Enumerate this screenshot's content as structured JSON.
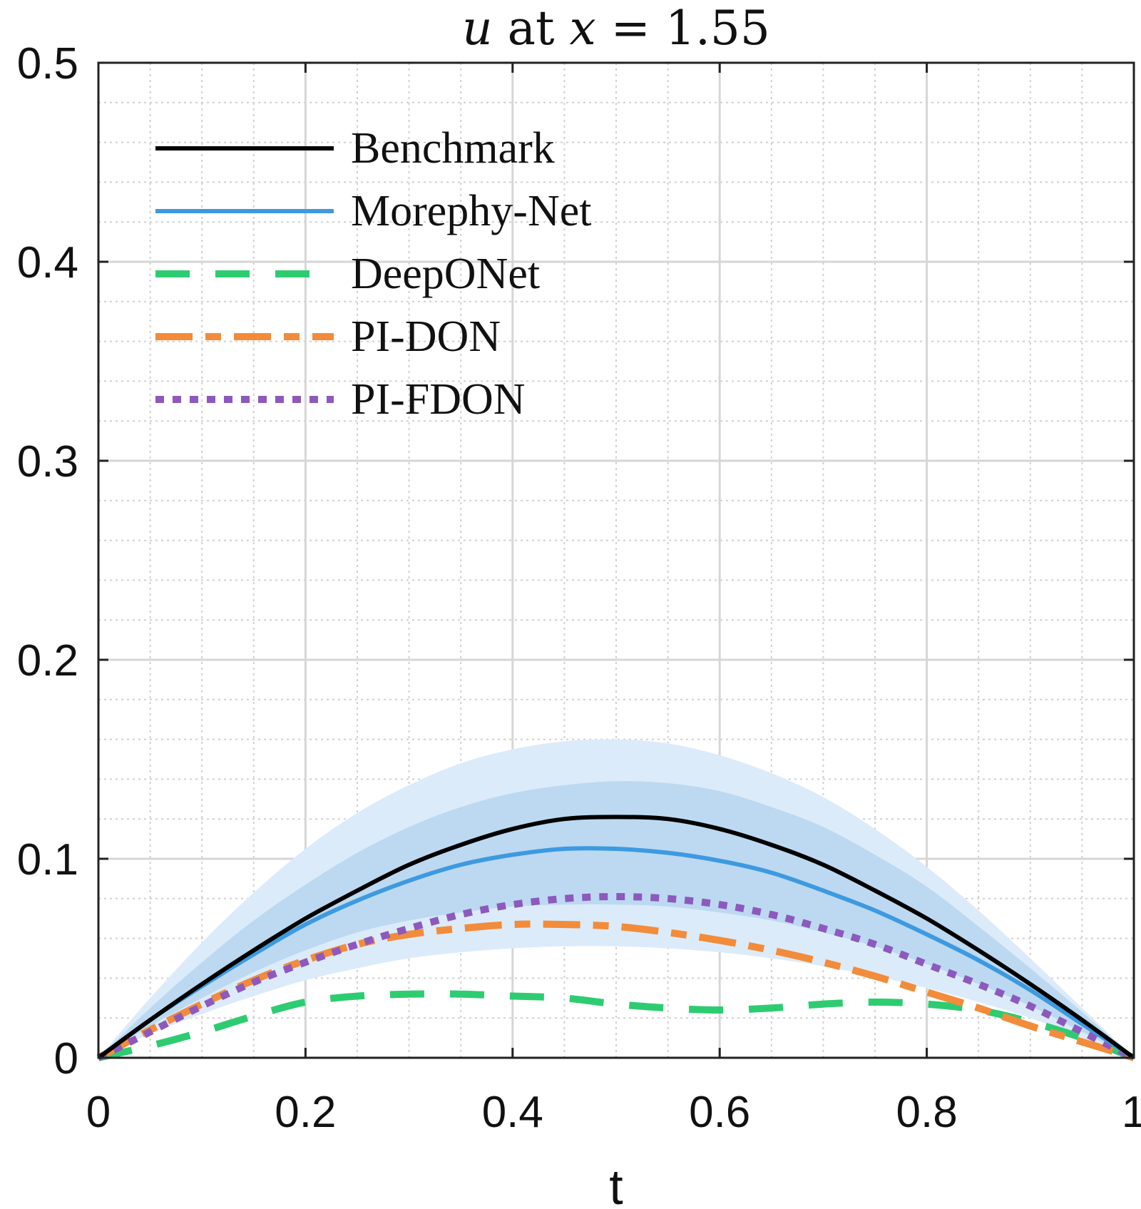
{
  "chart_data": {
    "type": "line",
    "title": "u at x = 1.55",
    "title_parts": {
      "var": "u",
      "mid": " at ",
      "xvar": "x",
      "eq": " = 1.55"
    },
    "xlabel": "t",
    "ylabel": "",
    "xlim": [
      0,
      1
    ],
    "ylim": [
      0,
      0.5
    ],
    "xticks": [
      0,
      0.2,
      0.4,
      0.6,
      0.8,
      1
    ],
    "xtick_labels": [
      "0",
      "0.2",
      "0.4",
      "0.6",
      "0.8",
      "1"
    ],
    "yticks": [
      0,
      0.1,
      0.2,
      0.3,
      0.4,
      0.5
    ],
    "ytick_labels": [
      "0",
      "0.1",
      "0.2",
      "0.3",
      "0.4",
      "0.5"
    ],
    "minor_step_x": 0.05,
    "minor_step_y": 0.02,
    "grid": true,
    "legend_position": "top-left",
    "x": [
      0,
      0.05,
      0.1,
      0.15,
      0.2,
      0.25,
      0.3,
      0.35,
      0.4,
      0.45,
      0.5,
      0.55,
      0.6,
      0.65,
      0.7,
      0.75,
      0.8,
      0.85,
      0.9,
      0.95,
      1.0
    ],
    "bands": [
      {
        "name": "Morephy-Net outer band",
        "color": "#dcebf9",
        "lower": [
          0,
          0.012,
          0.022,
          0.031,
          0.039,
          0.045,
          0.05,
          0.053,
          0.055,
          0.056,
          0.056,
          0.055,
          0.053,
          0.05,
          0.046,
          0.041,
          0.035,
          0.028,
          0.02,
          0.01,
          0
        ],
        "upper": [
          0,
          0.03,
          0.058,
          0.083,
          0.105,
          0.123,
          0.137,
          0.148,
          0.155,
          0.159,
          0.16,
          0.158,
          0.152,
          0.143,
          0.131,
          0.115,
          0.096,
          0.074,
          0.05,
          0.025,
          0
        ]
      },
      {
        "name": "Morephy-Net inner band",
        "color": "#bcd9f1",
        "lower": [
          0,
          0.016,
          0.03,
          0.043,
          0.054,
          0.063,
          0.069,
          0.073,
          0.076,
          0.077,
          0.077,
          0.076,
          0.073,
          0.069,
          0.063,
          0.056,
          0.047,
          0.037,
          0.026,
          0.013,
          0
        ],
        "upper": [
          0,
          0.025,
          0.048,
          0.069,
          0.087,
          0.103,
          0.116,
          0.126,
          0.133,
          0.137,
          0.139,
          0.138,
          0.134,
          0.126,
          0.116,
          0.102,
          0.086,
          0.066,
          0.045,
          0.023,
          0
        ]
      }
    ],
    "series": [
      {
        "name": "Benchmark",
        "color": "#000000",
        "style": "solid",
        "values": [
          0,
          0.019,
          0.037,
          0.054,
          0.07,
          0.084,
          0.097,
          0.107,
          0.115,
          0.12,
          0.121,
          0.12,
          0.115,
          0.107,
          0.097,
          0.084,
          0.07,
          0.054,
          0.037,
          0.019,
          0
        ]
      },
      {
        "name": "Morephy-Net",
        "color": "#3d9ae0",
        "style": "solid",
        "values": [
          0,
          0.019,
          0.036,
          0.052,
          0.067,
          0.079,
          0.089,
          0.097,
          0.102,
          0.105,
          0.105,
          0.103,
          0.099,
          0.093,
          0.084,
          0.074,
          0.062,
          0.049,
          0.034,
          0.017,
          0
        ]
      },
      {
        "name": "DeepONet",
        "color": "#2ecc71",
        "style": "dash",
        "values": [
          0,
          0.006,
          0.013,
          0.021,
          0.028,
          0.031,
          0.032,
          0.032,
          0.031,
          0.03,
          0.027,
          0.025,
          0.024,
          0.025,
          0.027,
          0.028,
          0.027,
          0.024,
          0.018,
          0.01,
          0
        ]
      },
      {
        "name": "PI-DON",
        "color": "#f28c3a",
        "style": "dashdot",
        "values": [
          0,
          0.014,
          0.027,
          0.039,
          0.049,
          0.057,
          0.062,
          0.065,
          0.067,
          0.067,
          0.066,
          0.063,
          0.059,
          0.054,
          0.048,
          0.041,
          0.033,
          0.025,
          0.016,
          0.008,
          0
        ]
      },
      {
        "name": "PI-FDON",
        "color": "#8e59bd",
        "style": "dot",
        "values": [
          0,
          0.013,
          0.026,
          0.038,
          0.048,
          0.057,
          0.065,
          0.072,
          0.077,
          0.08,
          0.081,
          0.08,
          0.077,
          0.072,
          0.065,
          0.057,
          0.047,
          0.037,
          0.026,
          0.013,
          0
        ]
      }
    ]
  }
}
